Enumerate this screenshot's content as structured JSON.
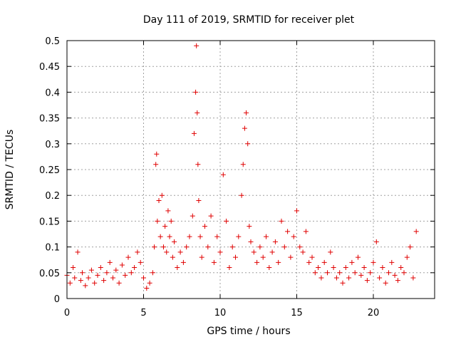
{
  "chart_data": {
    "type": "scatter",
    "title": "Day 111 of 2019, SRMTID for receiver plet",
    "xlabel": "GPS time / hours",
    "ylabel": "SRMTID / TECUs",
    "xlim": [
      0,
      24
    ],
    "ylim": [
      0,
      0.5
    ],
    "xticks": [
      0,
      5,
      10,
      15,
      20
    ],
    "yticks": [
      0,
      0.05,
      0.1,
      0.15,
      0.2,
      0.25,
      0.3,
      0.35,
      0.4,
      0.45,
      0.5
    ],
    "xtick_labels": [
      "0",
      "5",
      "10",
      "15",
      "20"
    ],
    "ytick_labels": [
      "0",
      "0.05",
      "0.1",
      "0.15",
      "0.2",
      "0.25",
      "0.3",
      "0.35",
      "0.4",
      "0.45",
      "0.5"
    ],
    "grid": true,
    "marker": "plus",
    "color": "#e00000",
    "series": [
      {
        "name": "SRMTID",
        "x": [
          0.0,
          0.2,
          0.4,
          0.5,
          0.7,
          0.9,
          1.0,
          1.2,
          1.4,
          1.6,
          1.8,
          2.0,
          2.2,
          2.4,
          2.6,
          2.8,
          3.0,
          3.2,
          3.4,
          3.6,
          3.8,
          4.0,
          4.2,
          4.4,
          4.6,
          4.8,
          5.0,
          5.2,
          5.4,
          5.6,
          5.7,
          5.8,
          5.85,
          5.9,
          6.0,
          6.1,
          6.2,
          6.3,
          6.4,
          6.5,
          6.6,
          6.7,
          6.8,
          6.9,
          7.0,
          7.2,
          7.4,
          7.6,
          7.8,
          8.0,
          8.2,
          8.3,
          8.4,
          8.45,
          8.5,
          8.55,
          8.6,
          8.7,
          8.8,
          9.0,
          9.2,
          9.4,
          9.6,
          9.8,
          10.0,
          10.2,
          10.4,
          10.6,
          10.8,
          11.0,
          11.2,
          11.4,
          11.5,
          11.6,
          11.7,
          11.8,
          11.9,
          12.0,
          12.2,
          12.4,
          12.6,
          12.8,
          13.0,
          13.2,
          13.4,
          13.6,
          13.8,
          14.0,
          14.2,
          14.4,
          14.6,
          14.8,
          15.0,
          15.2,
          15.4,
          15.6,
          15.8,
          16.0,
          16.2,
          16.4,
          16.6,
          16.8,
          17.0,
          17.2,
          17.4,
          17.6,
          17.8,
          18.0,
          18.2,
          18.4,
          18.6,
          18.8,
          19.0,
          19.2,
          19.4,
          19.6,
          19.8,
          20.0,
          20.2,
          20.4,
          20.6,
          20.8,
          21.0,
          21.2,
          21.4,
          21.6,
          21.8,
          22.0,
          22.2,
          22.4,
          22.6,
          22.8
        ],
        "y": [
          0.045,
          0.03,
          0.06,
          0.04,
          0.09,
          0.035,
          0.05,
          0.025,
          0.04,
          0.055,
          0.03,
          0.045,
          0.06,
          0.035,
          0.05,
          0.07,
          0.04,
          0.055,
          0.03,
          0.065,
          0.045,
          0.08,
          0.05,
          0.06,
          0.09,
          0.07,
          0.04,
          0.02,
          0.03,
          0.05,
          0.1,
          0.26,
          0.28,
          0.15,
          0.19,
          0.12,
          0.2,
          0.1,
          0.14,
          0.09,
          0.17,
          0.12,
          0.15,
          0.08,
          0.11,
          0.06,
          0.09,
          0.07,
          0.1,
          0.12,
          0.16,
          0.32,
          0.4,
          0.49,
          0.36,
          0.26,
          0.19,
          0.12,
          0.08,
          0.14,
          0.1,
          0.16,
          0.07,
          0.12,
          0.09,
          0.24,
          0.15,
          0.06,
          0.1,
          0.08,
          0.12,
          0.2,
          0.26,
          0.33,
          0.36,
          0.3,
          0.14,
          0.11,
          0.09,
          0.07,
          0.1,
          0.08,
          0.12,
          0.06,
          0.09,
          0.11,
          0.07,
          0.15,
          0.1,
          0.13,
          0.08,
          0.12,
          0.17,
          0.1,
          0.09,
          0.13,
          0.07,
          0.08,
          0.05,
          0.06,
          0.04,
          0.07,
          0.05,
          0.09,
          0.06,
          0.04,
          0.05,
          0.03,
          0.06,
          0.04,
          0.07,
          0.05,
          0.08,
          0.045,
          0.06,
          0.035,
          0.05,
          0.07,
          0.11,
          0.04,
          0.06,
          0.03,
          0.05,
          0.07,
          0.045,
          0.035,
          0.06,
          0.05,
          0.08,
          0.1,
          0.04,
          0.13
        ]
      }
    ]
  }
}
